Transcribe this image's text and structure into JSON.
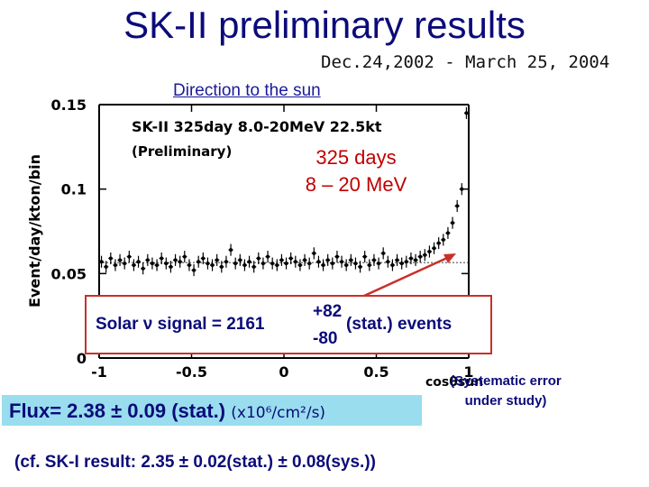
{
  "slide": {
    "title": "SK-II preliminary results",
    "date_range": "Dec.24,2002 - March 25, 2004",
    "subtitle": "Direction to the sun",
    "days_line1": "325 days",
    "days_line2": "8 – 20 MeV",
    "signal": {
      "prefix": "Solar ν signal = 2161",
      "plus": "+82",
      "minus": "-80",
      "suffix": "(stat.) events"
    },
    "flux": {
      "main": "Flux= 2.38 ± 0.09 (stat.)",
      "units": "(x10⁶/cm²/s)"
    },
    "systematic_line1": "(Systematic error",
    "systematic_line2": "under study)",
    "comparison": "(cf. SK-I result: 2.35 ± 0.02(stat.) ± 0.08(sys.))"
  },
  "chart_data": {
    "type": "scatter",
    "title": "SK-II 325day 8.0-20MeV 22.5kt",
    "annotation": "(Preliminary)",
    "xlabel": "cosθsun",
    "ylabel": "Event/day/kton/bin",
    "xlim": [
      -1,
      1
    ],
    "ylim": [
      0,
      0.15
    ],
    "xticks": [
      -1,
      -0.5,
      0,
      0.5,
      1
    ],
    "xtick_labels": [
      "-1",
      "-0.5",
      "0",
      "0.5",
      "1"
    ],
    "yticks": [
      0,
      0.05,
      0.1,
      0.15
    ],
    "ytick_labels": [
      "0",
      "0.05",
      "0.1",
      "0.15"
    ],
    "background_level": 0.0565,
    "error": 0.0035,
    "series": [
      {
        "name": "data",
        "x": [
          -0.9875,
          -0.9625,
          -0.9375,
          -0.9125,
          -0.8875,
          -0.8625,
          -0.8375,
          -0.8125,
          -0.7875,
          -0.7625,
          -0.7375,
          -0.7125,
          -0.6875,
          -0.6625,
          -0.6375,
          -0.6125,
          -0.5875,
          -0.5625,
          -0.5375,
          -0.5125,
          -0.4875,
          -0.4625,
          -0.4375,
          -0.4125,
          -0.3875,
          -0.3625,
          -0.3375,
          -0.3125,
          -0.2875,
          -0.2625,
          -0.2375,
          -0.2125,
          -0.1875,
          -0.1625,
          -0.1375,
          -0.1125,
          -0.0875,
          -0.0625,
          -0.0375,
          -0.0125,
          0.0125,
          0.0375,
          0.0625,
          0.0875,
          0.1125,
          0.1375,
          0.1625,
          0.1875,
          0.2125,
          0.2375,
          0.2625,
          0.2875,
          0.3125,
          0.3375,
          0.3625,
          0.3875,
          0.4125,
          0.4375,
          0.4625,
          0.4875,
          0.5125,
          0.5375,
          0.5625,
          0.5875,
          0.6125,
          0.6375,
          0.6625,
          0.6875,
          0.7125,
          0.7375,
          0.7625,
          0.7875,
          0.8125,
          0.8375,
          0.8625,
          0.8875,
          0.9125,
          0.9375,
          0.9625,
          0.9875
        ],
        "y": [
          0.057,
          0.054,
          0.059,
          0.055,
          0.058,
          0.056,
          0.06,
          0.055,
          0.057,
          0.053,
          0.058,
          0.056,
          0.055,
          0.059,
          0.056,
          0.054,
          0.058,
          0.057,
          0.06,
          0.055,
          0.052,
          0.057,
          0.059,
          0.056,
          0.055,
          0.058,
          0.054,
          0.057,
          0.064,
          0.056,
          0.058,
          0.055,
          0.057,
          0.054,
          0.059,
          0.056,
          0.06,
          0.056,
          0.055,
          0.058,
          0.056,
          0.059,
          0.057,
          0.055,
          0.058,
          0.056,
          0.062,
          0.057,
          0.055,
          0.058,
          0.056,
          0.06,
          0.057,
          0.055,
          0.058,
          0.056,
          0.054,
          0.06,
          0.055,
          0.058,
          0.056,
          0.062,
          0.057,
          0.055,
          0.058,
          0.056,
          0.057,
          0.059,
          0.058,
          0.06,
          0.061,
          0.063,
          0.065,
          0.068,
          0.07,
          0.074,
          0.08,
          0.09,
          0.1,
          0.145
        ]
      }
    ]
  }
}
